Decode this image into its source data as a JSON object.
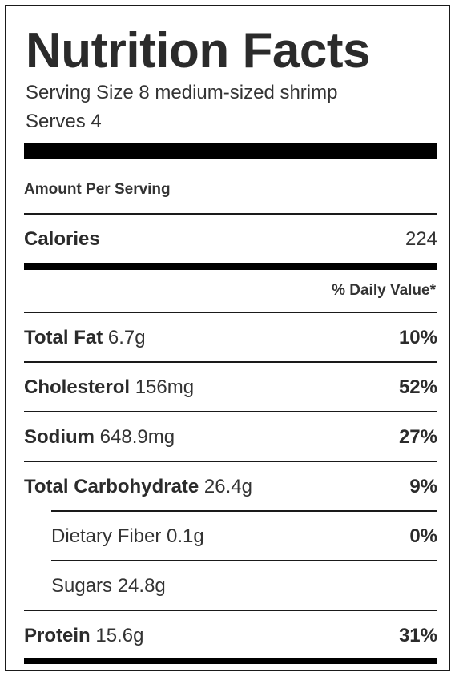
{
  "title": "Nutrition Facts",
  "serving_size": "Serving Size 8 medium-sized shrimp",
  "serves": "Serves 4",
  "amount_per_serving": "Amount Per Serving",
  "calories": {
    "label": "Calories",
    "value": "224"
  },
  "daily_value_header": "% Daily Value*",
  "nutrients": [
    {
      "name": "Total Fat",
      "amount": "6.7g",
      "dv": "10%"
    },
    {
      "name": "Cholesterol",
      "amount": "156mg",
      "dv": "52%"
    },
    {
      "name": "Sodium",
      "amount": "648.9mg",
      "dv": "27%"
    },
    {
      "name": "Total Carbohydrate",
      "amount": "26.4g",
      "dv": "9%"
    },
    {
      "name": "Dietary Fiber",
      "amount": "0.1g",
      "dv": "0%"
    },
    {
      "name": "Sugars",
      "amount": "24.8g",
      "dv": ""
    },
    {
      "name": "Protein",
      "amount": "15.6g",
      "dv": "31%"
    }
  ]
}
